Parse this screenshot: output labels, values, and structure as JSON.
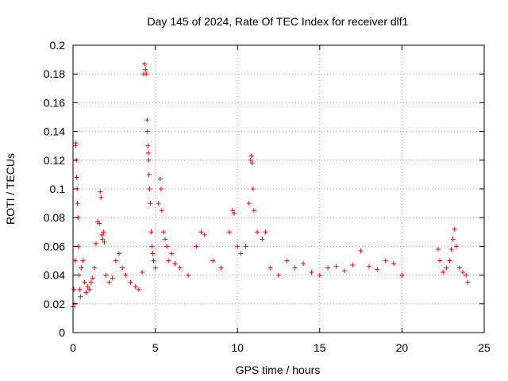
{
  "chart_data": {
    "type": "scatter",
    "title": "Day 145 of 2024, Rate Of TEC Index for receiver dlf1",
    "xlabel": "GPS time / hours",
    "ylabel": "ROTI / TECUs",
    "xlim": [
      0,
      25
    ],
    "ylim": [
      0,
      0.2
    ],
    "x_ticks": [
      "0",
      "5",
      "10",
      "15",
      "20",
      "25"
    ],
    "y_ticks": [
      "0",
      "0.02",
      "0.04",
      "0.06",
      "0.08",
      "0.1",
      "0.12",
      "0.14",
      "0.16",
      "0.18",
      "0.2"
    ],
    "grid": true,
    "marker": "+",
    "color": "#ff0000",
    "series": [
      {
        "points": [
          [
            0.0,
            0.018
          ],
          [
            0.05,
            0.03
          ],
          [
            0.1,
            0.02
          ],
          [
            0.12,
            0.05
          ],
          [
            0.15,
            0.13
          ],
          [
            0.18,
            0.132
          ],
          [
            0.2,
            0.12
          ],
          [
            0.22,
            0.108
          ],
          [
            0.25,
            0.1
          ],
          [
            0.27,
            0.09
          ],
          [
            0.3,
            0.08
          ],
          [
            0.32,
            0.06
          ],
          [
            0.35,
            0.04
          ],
          [
            0.4,
            0.03
          ],
          [
            0.45,
            0.025
          ],
          [
            0.5,
            0.045
          ],
          [
            0.6,
            0.05
          ],
          [
            0.7,
            0.035
          ],
          [
            0.8,
            0.028
          ],
          [
            0.9,
            0.032
          ],
          [
            1.0,
            0.03
          ],
          [
            1.1,
            0.035
          ],
          [
            1.2,
            0.038
          ],
          [
            1.3,
            0.045
          ],
          [
            1.4,
            0.062
          ],
          [
            1.5,
            0.077
          ],
          [
            1.6,
            0.076
          ],
          [
            1.65,
            0.098
          ],
          [
            1.7,
            0.094
          ],
          [
            1.75,
            0.068
          ],
          [
            1.8,
            0.065
          ],
          [
            1.85,
            0.07
          ],
          [
            1.9,
            0.063
          ],
          [
            2.0,
            0.04
          ],
          [
            2.2,
            0.035
          ],
          [
            2.4,
            0.038
          ],
          [
            2.6,
            0.05
          ],
          [
            2.8,
            0.055
          ],
          [
            3.0,
            0.045
          ],
          [
            3.2,
            0.04
          ],
          [
            3.5,
            0.035
          ],
          [
            3.8,
            0.032
          ],
          [
            4.0,
            0.03
          ],
          [
            4.2,
            0.042
          ],
          [
            4.3,
            0.18
          ],
          [
            4.35,
            0.187
          ],
          [
            4.4,
            0.183
          ],
          [
            4.45,
            0.18
          ],
          [
            4.5,
            0.148
          ],
          [
            4.52,
            0.14
          ],
          [
            4.55,
            0.13
          ],
          [
            4.58,
            0.125
          ],
          [
            4.6,
            0.12
          ],
          [
            4.62,
            0.11
          ],
          [
            4.65,
            0.1
          ],
          [
            4.7,
            0.09
          ],
          [
            4.75,
            0.07
          ],
          [
            4.8,
            0.06
          ],
          [
            4.85,
            0.055
          ],
          [
            4.9,
            0.05
          ],
          [
            5.0,
            0.045
          ],
          [
            5.2,
            0.09
          ],
          [
            5.3,
            0.107
          ],
          [
            5.35,
            0.1
          ],
          [
            5.4,
            0.085
          ],
          [
            5.5,
            0.07
          ],
          [
            5.6,
            0.065
          ],
          [
            5.7,
            0.06
          ],
          [
            5.8,
            0.05
          ],
          [
            6.0,
            0.055
          ],
          [
            6.2,
            0.048
          ],
          [
            6.5,
            0.045
          ],
          [
            7.0,
            0.04
          ],
          [
            7.5,
            0.06
          ],
          [
            7.8,
            0.07
          ],
          [
            8.0,
            0.068
          ],
          [
            8.5,
            0.05
          ],
          [
            9.0,
            0.045
          ],
          [
            9.5,
            0.07
          ],
          [
            9.7,
            0.085
          ],
          [
            9.8,
            0.083
          ],
          [
            10.0,
            0.06
          ],
          [
            10.2,
            0.055
          ],
          [
            10.5,
            0.06
          ],
          [
            10.7,
            0.09
          ],
          [
            10.8,
            0.12
          ],
          [
            10.85,
            0.123
          ],
          [
            10.9,
            0.118
          ],
          [
            10.95,
            0.1
          ],
          [
            11.0,
            0.085
          ],
          [
            11.2,
            0.07
          ],
          [
            11.5,
            0.065
          ],
          [
            11.7,
            0.07
          ],
          [
            12.0,
            0.045
          ],
          [
            12.5,
            0.04
          ],
          [
            13.0,
            0.05
          ],
          [
            13.5,
            0.045
          ],
          [
            14.0,
            0.048
          ],
          [
            14.5,
            0.042
          ],
          [
            15.0,
            0.04
          ],
          [
            15.5,
            0.045
          ],
          [
            16.0,
            0.046
          ],
          [
            16.5,
            0.043
          ],
          [
            17.0,
            0.047
          ],
          [
            17.5,
            0.057
          ],
          [
            18.0,
            0.046
          ],
          [
            18.5,
            0.044
          ],
          [
            19.0,
            0.05
          ],
          [
            19.5,
            0.048
          ],
          [
            20.0,
            0.04
          ],
          [
            22.2,
            0.058
          ],
          [
            22.3,
            0.05
          ],
          [
            22.5,
            0.042
          ],
          [
            22.7,
            0.045
          ],
          [
            22.9,
            0.05
          ],
          [
            23.0,
            0.058
          ],
          [
            23.1,
            0.065
          ],
          [
            23.2,
            0.072
          ],
          [
            23.3,
            0.06
          ],
          [
            23.5,
            0.045
          ],
          [
            23.7,
            0.042
          ],
          [
            23.9,
            0.04
          ],
          [
            24.0,
            0.035
          ]
        ]
      }
    ]
  }
}
